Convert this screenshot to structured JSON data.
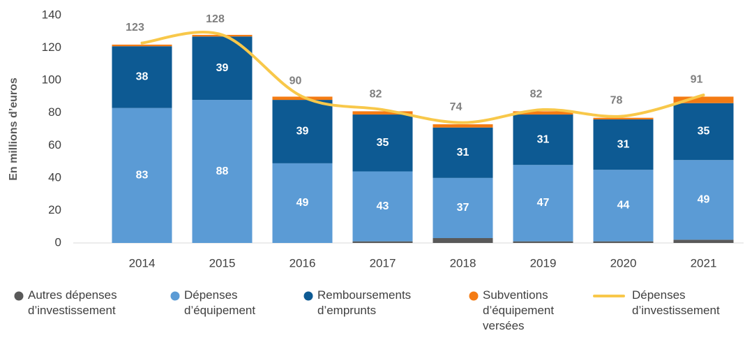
{
  "chart_data": {
    "type": "bar",
    "y_label": "En millions d’euros",
    "categories": [
      "2014",
      "2015",
      "2016",
      "2017",
      "2018",
      "2019",
      "2020",
      "2021"
    ],
    "series": [
      {
        "name": "Autres dépenses d’investissement",
        "color": "#595959",
        "values": [
          0,
          0,
          0,
          1,
          3,
          1,
          1,
          2
        ]
      },
      {
        "name": "Dépenses d’équipement",
        "color": "#5b9bd5",
        "values": [
          83,
          88,
          49,
          43,
          37,
          47,
          44,
          49
        ],
        "data_labels": true
      },
      {
        "name": "Remboursements d’emprunts",
        "color": "#0d5a93",
        "values": [
          38,
          39,
          39,
          35,
          31,
          31,
          31,
          35
        ],
        "data_labels": true
      },
      {
        "name": "Subventions d’équipement versées",
        "color": "#f47b13",
        "values": [
          1,
          1,
          2,
          2,
          2,
          2,
          1,
          4
        ]
      },
      {
        "name": "Dépenses d’investissement",
        "color": "#f8c84a",
        "type": "line",
        "values": [
          123,
          128,
          90,
          82,
          74,
          82,
          78,
          91
        ],
        "data_labels": true
      }
    ],
    "ylim": [
      0,
      140
    ],
    "yticks": [
      0,
      20,
      40,
      60,
      80,
      100,
      120,
      140
    ],
    "grid": false
  }
}
